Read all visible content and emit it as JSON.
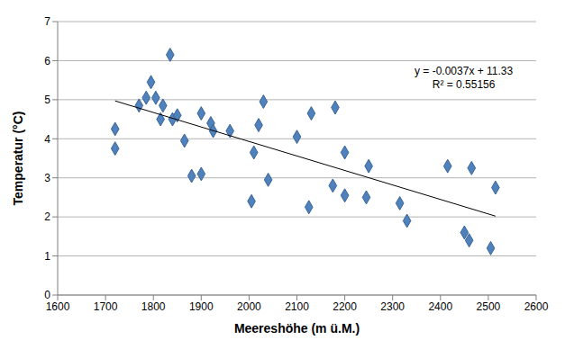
{
  "chart_data": {
    "type": "scatter",
    "x_label": "Meereshöhe (m ü.M.)",
    "y_label": "Temperatur (°C)",
    "x": [
      1720,
      1720,
      1770,
      1785,
      1795,
      1805,
      1815,
      1820,
      1835,
      1840,
      1850,
      1865,
      1880,
      1900,
      1900,
      1920,
      1925,
      1960,
      2005,
      2010,
      2020,
      2030,
      2040,
      2100,
      2125,
      2130,
      2175,
      2180,
      2200,
      2200,
      2245,
      2250,
      2315,
      2330,
      2415,
      2450,
      2460,
      2465,
      2505,
      2515
    ],
    "values": [
      4.25,
      3.75,
      4.85,
      5.05,
      5.45,
      5.05,
      4.5,
      4.85,
      6.15,
      4.5,
      4.6,
      3.95,
      3.05,
      4.65,
      3.1,
      4.4,
      4.2,
      4.2,
      2.4,
      3.65,
      4.35,
      4.95,
      2.95,
      4.05,
      2.25,
      4.65,
      2.8,
      4.8,
      2.55,
      3.65,
      2.5,
      3.3,
      2.35,
      1.9,
      3.3,
      1.6,
      1.4,
      3.25,
      1.2,
      2.75
    ],
    "color": "#4f81bd",
    "marker": "diamond",
    "trendline": {
      "x": [
        1720,
        2515
      ],
      "values": [
        4.97,
        2.02
      ],
      "color": "#000000"
    },
    "annotations": [
      "y = -0.0037x + 11.33",
      "R² = 0.55156"
    ],
    "xlim": [
      1600,
      2600
    ],
    "xticks": [
      1600,
      1700,
      1800,
      1900,
      2000,
      2100,
      2200,
      2300,
      2400,
      2500,
      2600
    ],
    "ylim": [
      0,
      7
    ],
    "yticks": [
      0,
      1,
      2,
      3,
      4,
      5,
      6,
      7
    ],
    "grid": true
  }
}
